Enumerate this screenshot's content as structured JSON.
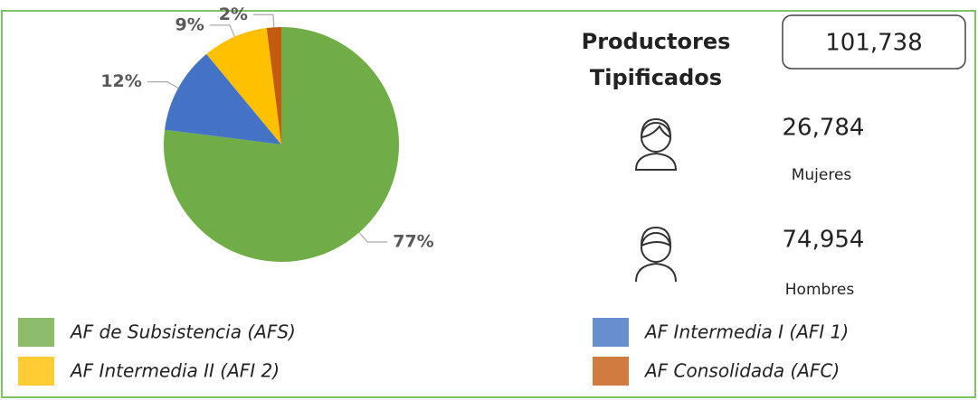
{
  "chart_data": {
    "type": "pie",
    "categories": [
      "AF de Subsistencia (AFS)",
      "AF Intermedia I (AFI 1)",
      "AF Intermedia II (AFI 2)",
      "AF Consolidada (AFC)"
    ],
    "values": [
      77,
      12,
      9,
      2
    ],
    "value_labels": [
      "77%",
      "12%",
      "9%",
      "2%"
    ],
    "colors": [
      "#70ad47",
      "#4472c4",
      "#ffc000",
      "#c55a11"
    ],
    "legend": "bottom"
  },
  "summary": {
    "title": "Productores Tipificados",
    "total": "101,738",
    "women": {
      "value": "26,784",
      "label": "Mujeres"
    },
    "men": {
      "value": "74,954",
      "label": "Hombres"
    }
  }
}
